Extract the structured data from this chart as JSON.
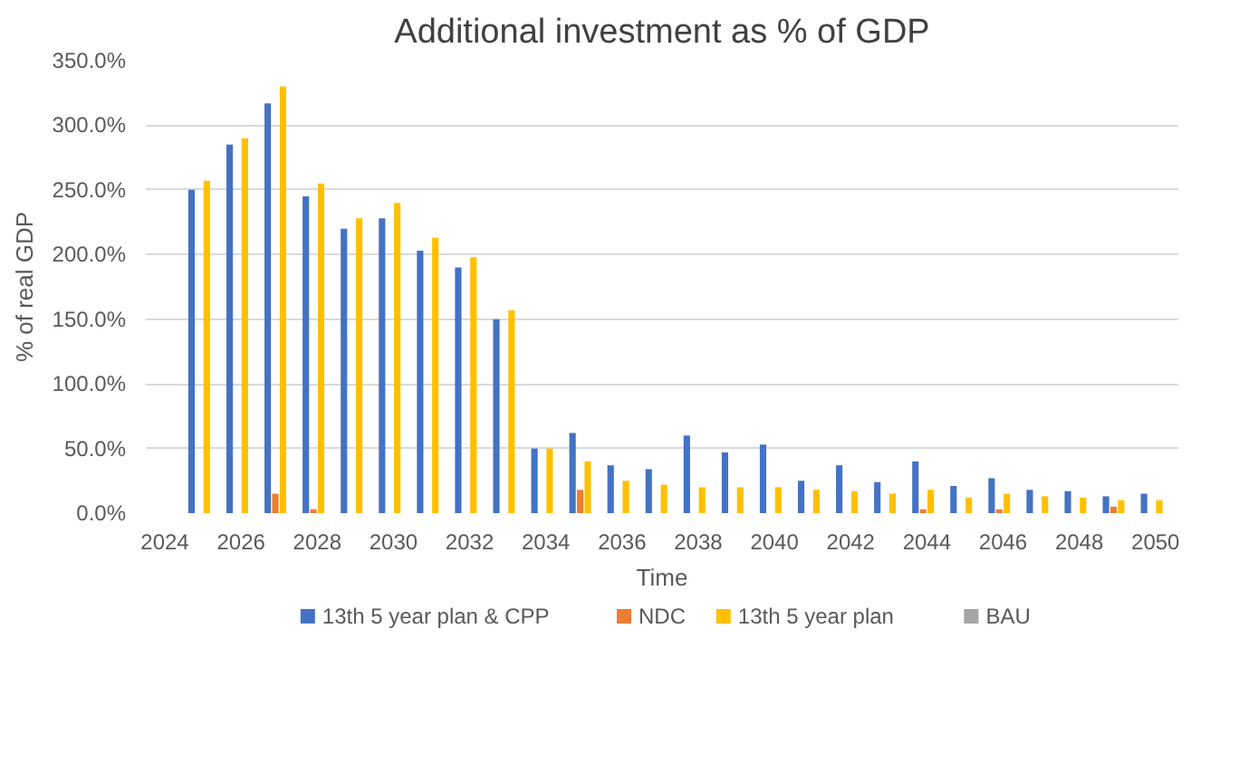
{
  "chart_data": {
    "type": "bar",
    "title": "Additional investment as % of GDP",
    "xlabel": "Time",
    "ylabel": "% of real GDP",
    "x": [
      2025,
      2026,
      2027,
      2028,
      2029,
      2030,
      2031,
      2032,
      2033,
      2034,
      2035,
      2036,
      2037,
      2038,
      2039,
      2040,
      2041,
      2042,
      2043,
      2044,
      2045,
      2046,
      2047,
      2048,
      2049,
      2050
    ],
    "xlim": [
      2023.5,
      2050.6
    ],
    "xticks": [
      2024,
      2026,
      2028,
      2030,
      2032,
      2034,
      2036,
      2038,
      2040,
      2042,
      2044,
      2046,
      2048,
      2050
    ],
    "ylim": [
      0,
      350
    ],
    "yticks": [
      {
        "value": 0,
        "label": "0.0%"
      },
      {
        "value": 50,
        "label": "50.0%"
      },
      {
        "value": 100,
        "label": "100.0%"
      },
      {
        "value": 150,
        "label": "150.0%"
      },
      {
        "value": 200,
        "label": "200.0%"
      },
      {
        "value": 250,
        "label": "250.0%"
      },
      {
        "value": 300,
        "label": "300.0%"
      },
      {
        "value": 350,
        "label": "350.0%"
      }
    ],
    "grid": "y",
    "legend": "bottom",
    "series": [
      {
        "name": "13th 5 year plan & CPP",
        "color": "#4472c4",
        "values": [
          250,
          285,
          317,
          245,
          220,
          228,
          203,
          190,
          150,
          50,
          62,
          37,
          34,
          60,
          47,
          53,
          25,
          37,
          24,
          40,
          21,
          27,
          18,
          17,
          13,
          15
        ]
      },
      {
        "name": "NDC",
        "color": "#ed7d31",
        "values": [
          0,
          0,
          15,
          3,
          0,
          0,
          0,
          0,
          0,
          0,
          18,
          0,
          0,
          0,
          0,
          0,
          0,
          0,
          0,
          3,
          0,
          3,
          0,
          0,
          5,
          0
        ]
      },
      {
        "name": "13th 5 year plan",
        "color": "#ffc000",
        "values": [
          257,
          290,
          330,
          255,
          228,
          240,
          213,
          198,
          157,
          50,
          40,
          25,
          22,
          20,
          20,
          20,
          18,
          17,
          15,
          18,
          12,
          15,
          13,
          12,
          10,
          10
        ]
      },
      {
        "name": "BAU",
        "color": "#a5a5a5",
        "values": [
          0,
          0,
          0,
          0,
          0,
          0,
          0,
          0,
          0,
          0,
          0,
          0,
          0,
          0,
          0,
          0,
          0,
          0,
          0,
          0,
          0,
          0,
          0,
          0,
          0,
          0
        ]
      }
    ]
  }
}
